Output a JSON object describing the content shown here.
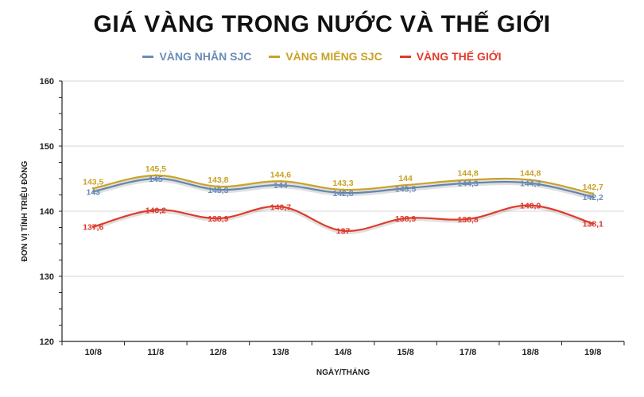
{
  "chart_data": {
    "type": "line",
    "title": "GIÁ VÀNG TRONG NƯỚC VÀ THẾ GIỚI",
    "xlabel": "NGÀY/THÁNG",
    "ylabel": "ĐƠN VỊ TÍNH TRIỆU ĐỒNG",
    "categories": [
      "10/8",
      "11/8",
      "12/8",
      "13/8",
      "14/8",
      "15/8",
      "17/8",
      "18/8",
      "19/8"
    ],
    "ylim": [
      120,
      160
    ],
    "yticks": [
      120,
      130,
      140,
      150,
      160
    ],
    "grid": true,
    "legend_position": "top",
    "series": [
      {
        "name": "VÀNG NHẪN SJC",
        "color": "#6b8cb8",
        "values": [
          143,
          145,
          143.3,
          144,
          142.8,
          143.5,
          144.3,
          144.3,
          142.2
        ],
        "labels": [
          "143",
          "145",
          "143,3",
          "144",
          "142,8",
          "143,5",
          "144,3",
          "144,3",
          "142,2"
        ]
      },
      {
        "name": "VÀNG MIẾNG SJC",
        "color": "#c9a227",
        "values": [
          143.5,
          145.5,
          143.8,
          144.6,
          143.3,
          144,
          144.8,
          144.8,
          142.7
        ],
        "labels": [
          "143,5",
          "145,5",
          "143,8",
          "144,6",
          "143,3",
          "144",
          "144,8",
          "144,8",
          "142,7"
        ]
      },
      {
        "name": "VÀNG THẾ GIỚI",
        "color": "#e03a2a",
        "values": [
          137.6,
          140.2,
          138.9,
          140.7,
          137,
          138.9,
          138.8,
          140.9,
          138.1
        ],
        "labels": [
          "137,6",
          "140,2",
          "138,9",
          "140,7",
          "137",
          "138,9",
          "138,8",
          "140,9",
          "138,1"
        ]
      }
    ]
  }
}
